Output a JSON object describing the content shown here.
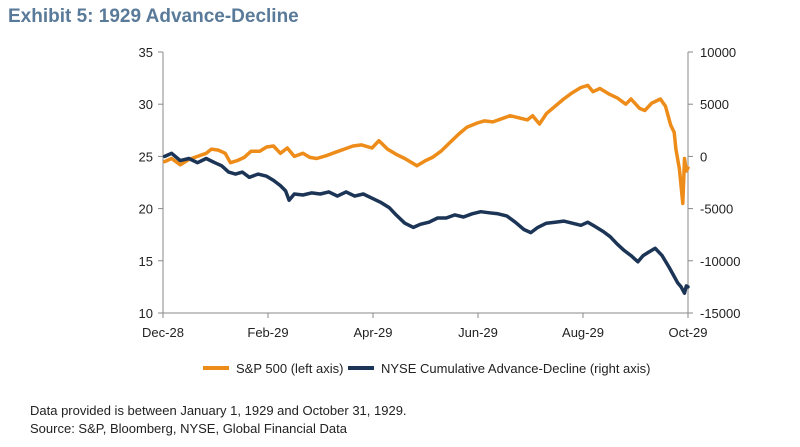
{
  "header": {
    "title": "Exhibit 5: 1929 Advance-Decline"
  },
  "notes": [
    "Data provided is between January 1, 1929 and October 31, 1929.",
    "Source: S&P, Bloomberg, NYSE, Global Financial Data"
  ],
  "colors": {
    "sp500": "#ee8c1a",
    "nyse": "#1c3556",
    "axis": "#888888"
  },
  "chart_data": {
    "type": "line",
    "x_ticks": [
      "Dec-28",
      "Feb-29",
      "Apr-29",
      "Jun-29",
      "Aug-29",
      "Oct-29"
    ],
    "y_left": {
      "min": 10,
      "max": 35,
      "ticks": [
        10,
        15,
        20,
        25,
        30,
        35
      ]
    },
    "y_right": {
      "min": -15000,
      "max": 10000,
      "ticks": [
        -15000,
        -10000,
        -5000,
        0,
        5000,
        10000
      ]
    },
    "grid": false,
    "legend_position": "bottom",
    "series": [
      {
        "name": "S&P 500 (left axis)",
        "axis": "left",
        "points": [
          [
            "1929-01-01",
            24.5
          ],
          [
            "1929-01-05",
            24.8
          ],
          [
            "1929-01-10",
            24.2
          ],
          [
            "1929-01-15",
            24.7
          ],
          [
            "1929-01-20",
            25.0
          ],
          [
            "1929-01-25",
            25.3
          ],
          [
            "1929-01-28",
            25.7
          ],
          [
            "1929-02-01",
            25.6
          ],
          [
            "1929-02-05",
            25.3
          ],
          [
            "1929-02-08",
            24.4
          ],
          [
            "1929-02-12",
            24.6
          ],
          [
            "1929-02-16",
            24.9
          ],
          [
            "1929-02-20",
            25.5
          ],
          [
            "1929-02-25",
            25.5
          ],
          [
            "1929-03-01",
            25.9
          ],
          [
            "1929-03-05",
            26.0
          ],
          [
            "1929-03-09",
            25.3
          ],
          [
            "1929-03-13",
            25.8
          ],
          [
            "1929-03-17",
            25.0
          ],
          [
            "1929-03-22",
            25.3
          ],
          [
            "1929-03-26",
            24.9
          ],
          [
            "1929-03-30",
            24.8
          ],
          [
            "1929-04-05",
            25.1
          ],
          [
            "1929-04-10",
            25.4
          ],
          [
            "1929-04-15",
            25.7
          ],
          [
            "1929-04-20",
            26.0
          ],
          [
            "1929-04-25",
            26.1
          ],
          [
            "1929-05-01",
            25.8
          ],
          [
            "1929-05-05",
            26.5
          ],
          [
            "1929-05-10",
            25.7
          ],
          [
            "1929-05-15",
            25.2
          ],
          [
            "1929-05-20",
            24.8
          ],
          [
            "1929-05-27",
            24.1
          ],
          [
            "1929-06-01",
            24.6
          ],
          [
            "1929-06-05",
            24.9
          ],
          [
            "1929-06-10",
            25.5
          ],
          [
            "1929-06-15",
            26.3
          ],
          [
            "1929-06-20",
            27.1
          ],
          [
            "1929-06-25",
            27.8
          ],
          [
            "1929-07-01",
            28.2
          ],
          [
            "1929-07-05",
            28.4
          ],
          [
            "1929-07-10",
            28.3
          ],
          [
            "1929-07-15",
            28.6
          ],
          [
            "1929-07-20",
            28.9
          ],
          [
            "1929-07-25",
            28.7
          ],
          [
            "1929-07-30",
            28.5
          ],
          [
            "1929-08-02",
            28.9
          ],
          [
            "1929-08-06",
            28.1
          ],
          [
            "1929-08-10",
            29.1
          ],
          [
            "1929-08-15",
            29.8
          ],
          [
            "1929-08-20",
            30.5
          ],
          [
            "1929-08-25",
            31.1
          ],
          [
            "1929-08-30",
            31.6
          ],
          [
            "1929-09-03",
            31.8
          ],
          [
            "1929-09-06",
            31.2
          ],
          [
            "1929-09-10",
            31.5
          ],
          [
            "1929-09-15",
            31.0
          ],
          [
            "1929-09-20",
            30.6
          ],
          [
            "1929-09-25",
            30.0
          ],
          [
            "1929-09-28",
            30.5
          ],
          [
            "1929-10-03",
            29.6
          ],
          [
            "1929-10-06",
            29.4
          ],
          [
            "1929-10-10",
            30.1
          ],
          [
            "1929-10-15",
            30.5
          ],
          [
            "1929-10-18",
            29.8
          ],
          [
            "1929-10-21",
            28.0
          ],
          [
            "1929-10-23",
            27.3
          ],
          [
            "1929-10-24",
            25.7
          ],
          [
            "1929-10-26",
            23.8
          ],
          [
            "1929-10-28",
            20.5
          ],
          [
            "1929-10-29",
            24.8
          ],
          [
            "1929-10-30",
            23.6
          ],
          [
            "1929-10-31",
            23.9
          ]
        ]
      },
      {
        "name": "NYSE Cumulative Advance-Decline (right axis)",
        "axis": "right",
        "points": [
          [
            "1929-01-01",
            0
          ],
          [
            "1929-01-05",
            300
          ],
          [
            "1929-01-10",
            -400
          ],
          [
            "1929-01-15",
            -200
          ],
          [
            "1929-01-20",
            -600
          ],
          [
            "1929-01-25",
            -200
          ],
          [
            "1929-01-30",
            -600
          ],
          [
            "1929-02-03",
            -900
          ],
          [
            "1929-02-07",
            -1500
          ],
          [
            "1929-02-11",
            -1700
          ],
          [
            "1929-02-15",
            -1500
          ],
          [
            "1929-02-19",
            -2000
          ],
          [
            "1929-02-24",
            -1700
          ],
          [
            "1929-03-01",
            -1900
          ],
          [
            "1929-03-05",
            -2300
          ],
          [
            "1929-03-09",
            -2800
          ],
          [
            "1929-03-12",
            -3300
          ],
          [
            "1929-03-14",
            -4200
          ],
          [
            "1929-03-17",
            -3600
          ],
          [
            "1929-03-22",
            -3700
          ],
          [
            "1929-03-27",
            -3500
          ],
          [
            "1929-04-01",
            -3600
          ],
          [
            "1929-04-06",
            -3400
          ],
          [
            "1929-04-11",
            -3800
          ],
          [
            "1929-04-16",
            -3400
          ],
          [
            "1929-04-21",
            -3800
          ],
          [
            "1929-04-26",
            -3600
          ],
          [
            "1929-05-01",
            -4000
          ],
          [
            "1929-05-06",
            -4400
          ],
          [
            "1929-05-11",
            -4900
          ],
          [
            "1929-05-15",
            -5600
          ],
          [
            "1929-05-20",
            -6400
          ],
          [
            "1929-05-25",
            -6800
          ],
          [
            "1929-05-29",
            -6500
          ],
          [
            "1929-06-03",
            -6300
          ],
          [
            "1929-06-08",
            -5900
          ],
          [
            "1929-06-13",
            -5900
          ],
          [
            "1929-06-18",
            -5600
          ],
          [
            "1929-06-23",
            -5800
          ],
          [
            "1929-06-28",
            -5500
          ],
          [
            "1929-07-03",
            -5300
          ],
          [
            "1929-07-08",
            -5400
          ],
          [
            "1929-07-13",
            -5500
          ],
          [
            "1929-07-18",
            -5700
          ],
          [
            "1929-07-23",
            -6300
          ],
          [
            "1929-07-28",
            -7000
          ],
          [
            "1929-08-01",
            -7300
          ],
          [
            "1929-08-05",
            -6800
          ],
          [
            "1929-08-10",
            -6400
          ],
          [
            "1929-08-15",
            -6300
          ],
          [
            "1929-08-20",
            -6200
          ],
          [
            "1929-08-25",
            -6400
          ],
          [
            "1929-08-30",
            -6600
          ],
          [
            "1929-09-03",
            -6300
          ],
          [
            "1929-09-07",
            -6700
          ],
          [
            "1929-09-12",
            -7200
          ],
          [
            "1929-09-16",
            -7700
          ],
          [
            "1929-09-20",
            -8400
          ],
          [
            "1929-09-24",
            -9000
          ],
          [
            "1929-09-28",
            -9500
          ],
          [
            "1929-10-02",
            -10100
          ],
          [
            "1929-10-05",
            -9500
          ],
          [
            "1929-10-08",
            -9200
          ],
          [
            "1929-10-12",
            -8800
          ],
          [
            "1929-10-16",
            -9500
          ],
          [
            "1929-10-20",
            -10600
          ],
          [
            "1929-10-23",
            -11500
          ],
          [
            "1929-10-25",
            -12100
          ],
          [
            "1929-10-27",
            -12500
          ],
          [
            "1929-10-29",
            -13100
          ],
          [
            "1929-10-30",
            -12400
          ],
          [
            "1929-10-31",
            -12500
          ]
        ]
      }
    ]
  }
}
